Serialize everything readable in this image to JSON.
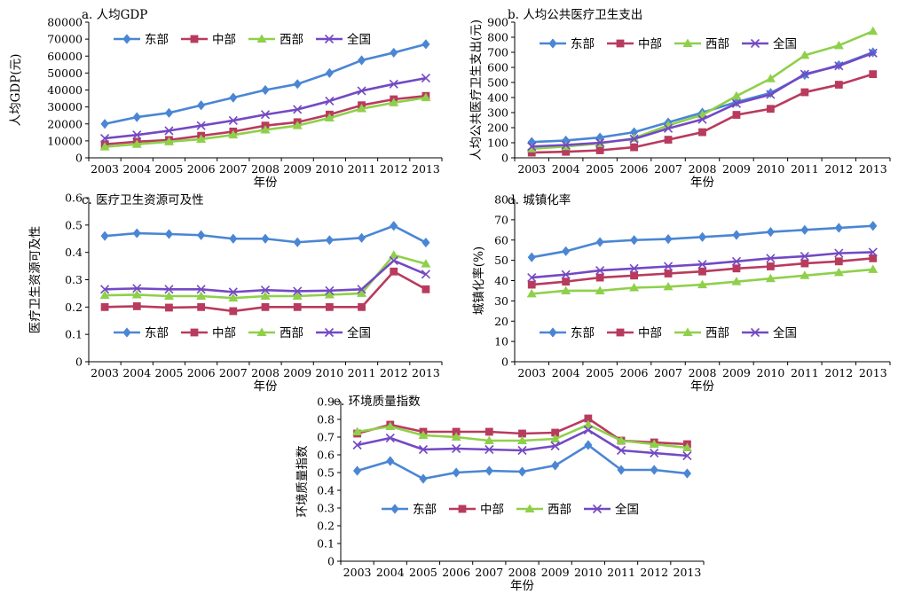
{
  "chart_data": [
    {
      "id": "a",
      "type": "line",
      "title": "a. 人均GDP",
      "xlabel": "年份",
      "ylabel": "人均GDP(元)",
      "ylim": [
        0,
        80000
      ],
      "yticks": [
        "0",
        "10000",
        "20000",
        "30000",
        "40000",
        "50000",
        "60000",
        "70000",
        "80000"
      ],
      "categories": [
        "2003",
        "2004",
        "2005",
        "2006",
        "2007",
        "2008",
        "2009",
        "2010",
        "2011",
        "2012",
        "2013"
      ],
      "legend_position": "top-center",
      "series": [
        {
          "name": "东部",
          "values": [
            20000,
            24000,
            26500,
            31000,
            35500,
            40000,
            43500,
            50000,
            57500,
            62000,
            67000
          ]
        },
        {
          "name": "中部",
          "values": [
            8000,
            9500,
            10500,
            13000,
            15500,
            19000,
            21000,
            25500,
            31000,
            34500,
            36500
          ]
        },
        {
          "name": "西部",
          "values": [
            6500,
            8000,
            9500,
            11000,
            13500,
            16500,
            19000,
            23500,
            29000,
            32500,
            35500
          ]
        },
        {
          "name": "全国",
          "values": [
            11500,
            13500,
            16000,
            19000,
            22000,
            25500,
            28500,
            33500,
            39500,
            43500,
            47000
          ]
        }
      ]
    },
    {
      "id": "b",
      "type": "line",
      "title": "b. 人均公共医疗卫生支出",
      "xlabel": "年份",
      "ylabel": "人均公共医疗卫生支出(元)",
      "ylim": [
        0,
        900
      ],
      "yticks": [
        "0",
        "100",
        "200",
        "300",
        "400",
        "500",
        "600",
        "700",
        "800",
        "900"
      ],
      "categories": [
        "2003",
        "2004",
        "2005",
        "2006",
        "2007",
        "2008",
        "2009",
        "2010",
        "2011",
        "2012",
        "2013"
      ],
      "legend_position": "top-center",
      "series": [
        {
          "name": "东部",
          "values": [
            105,
            115,
            135,
            170,
            235,
            300,
            370,
            430,
            550,
            615,
            700
          ]
        },
        {
          "name": "中部",
          "values": [
            35,
            40,
            50,
            70,
            120,
            170,
            285,
            325,
            435,
            485,
            555
          ]
        },
        {
          "name": "西部",
          "values": [
            60,
            75,
            95,
            130,
            215,
            285,
            410,
            525,
            680,
            745,
            840
          ]
        },
        {
          "name": "全国",
          "values": [
            75,
            85,
            100,
            125,
            195,
            255,
            360,
            420,
            555,
            610,
            695
          ]
        }
      ]
    },
    {
      "id": "c",
      "type": "line",
      "title": "c. 医疗卫生资源可及性",
      "xlabel": "年份",
      "ylabel": "医疗卫生资源可及性",
      "ylim": [
        0,
        0.6
      ],
      "yticks": [
        "0",
        "0.1",
        "0.2",
        "0.3",
        "0.4",
        "0.5",
        "0.6"
      ],
      "categories": [
        "2003",
        "2004",
        "2005",
        "2006",
        "2007",
        "2008",
        "2009",
        "2010",
        "2011",
        "2012",
        "2013"
      ],
      "legend_position": "lower-center",
      "series": [
        {
          "name": "东部",
          "values": [
            0.46,
            0.47,
            0.467,
            0.463,
            0.45,
            0.45,
            0.437,
            0.445,
            0.453,
            0.497,
            0.436
          ]
        },
        {
          "name": "中部",
          "values": [
            0.2,
            0.203,
            0.198,
            0.2,
            0.185,
            0.2,
            0.2,
            0.2,
            0.2,
            0.33,
            0.265
          ]
        },
        {
          "name": "西部",
          "values": [
            0.243,
            0.245,
            0.24,
            0.24,
            0.233,
            0.24,
            0.24,
            0.245,
            0.25,
            0.39,
            0.358
          ]
        },
        {
          "name": "全国",
          "values": [
            0.265,
            0.268,
            0.265,
            0.265,
            0.255,
            0.262,
            0.258,
            0.26,
            0.265,
            0.37,
            0.32
          ]
        }
      ]
    },
    {
      "id": "d",
      "type": "line",
      "title": "d. 城镇化率",
      "xlabel": "年份",
      "ylabel": "城镇化率(%)",
      "ylim": [
        0,
        80
      ],
      "yticks": [
        "0",
        "10",
        "20",
        "30",
        "40",
        "50",
        "60",
        "70",
        "80"
      ],
      "categories": [
        "2003",
        "2004",
        "2005",
        "2006",
        "2007",
        "2008",
        "2009",
        "2010",
        "2011",
        "2012",
        "2013"
      ],
      "legend_position": "lower-center",
      "series": [
        {
          "name": "东部",
          "values": [
            51.5,
            54.5,
            59,
            60,
            60.5,
            61.5,
            62.5,
            64,
            65,
            66,
            67
          ]
        },
        {
          "name": "中部",
          "values": [
            38,
            39.5,
            41.5,
            42.5,
            43.5,
            44.5,
            46,
            47,
            48.5,
            49.5,
            51
          ]
        },
        {
          "name": "西部",
          "values": [
            33.5,
            35,
            35,
            36.5,
            37,
            38,
            39.5,
            41,
            42.5,
            44,
            45.5
          ]
        },
        {
          "name": "全国",
          "values": [
            41.5,
            43,
            45,
            46,
            47,
            48,
            49.5,
            51,
            52,
            53.5,
            54
          ]
        }
      ]
    },
    {
      "id": "e",
      "type": "line",
      "title": "e. 环境质量指数",
      "xlabel": "年份",
      "ylabel": "环境质量指数",
      "ylim": [
        0,
        0.9
      ],
      "yticks": [
        "0",
        "0.1",
        "0.2",
        "0.3",
        "0.4",
        "0.5",
        "0.6",
        "0.7",
        "0.8",
        "0.9"
      ],
      "categories": [
        "2003",
        "2004",
        "2005",
        "2006",
        "2007",
        "2008",
        "2009",
        "2010",
        "2011",
        "2012",
        "2013"
      ],
      "legend_position": "middle-center",
      "series": [
        {
          "name": "东部",
          "values": [
            0.51,
            0.565,
            0.465,
            0.5,
            0.51,
            0.505,
            0.54,
            0.655,
            0.515,
            0.515,
            0.495
          ]
        },
        {
          "name": "中部",
          "values": [
            0.72,
            0.77,
            0.73,
            0.73,
            0.73,
            0.72,
            0.725,
            0.805,
            0.68,
            0.67,
            0.66
          ]
        },
        {
          "name": "西部",
          "values": [
            0.73,
            0.76,
            0.71,
            0.7,
            0.68,
            0.68,
            0.69,
            0.77,
            0.68,
            0.66,
            0.64
          ]
        },
        {
          "name": "全国",
          "values": [
            0.655,
            0.695,
            0.63,
            0.635,
            0.63,
            0.625,
            0.65,
            0.74,
            0.625,
            0.61,
            0.595
          ]
        }
      ]
    }
  ],
  "series_colors": {
    "东部": "#4a86d4",
    "中部": "#b83b5e",
    "西部": "#8fd04a",
    "全国": "#7349c4"
  },
  "series_markers": {
    "东部": "diamond",
    "中部": "square",
    "西部": "triangle",
    "全国": "x"
  }
}
